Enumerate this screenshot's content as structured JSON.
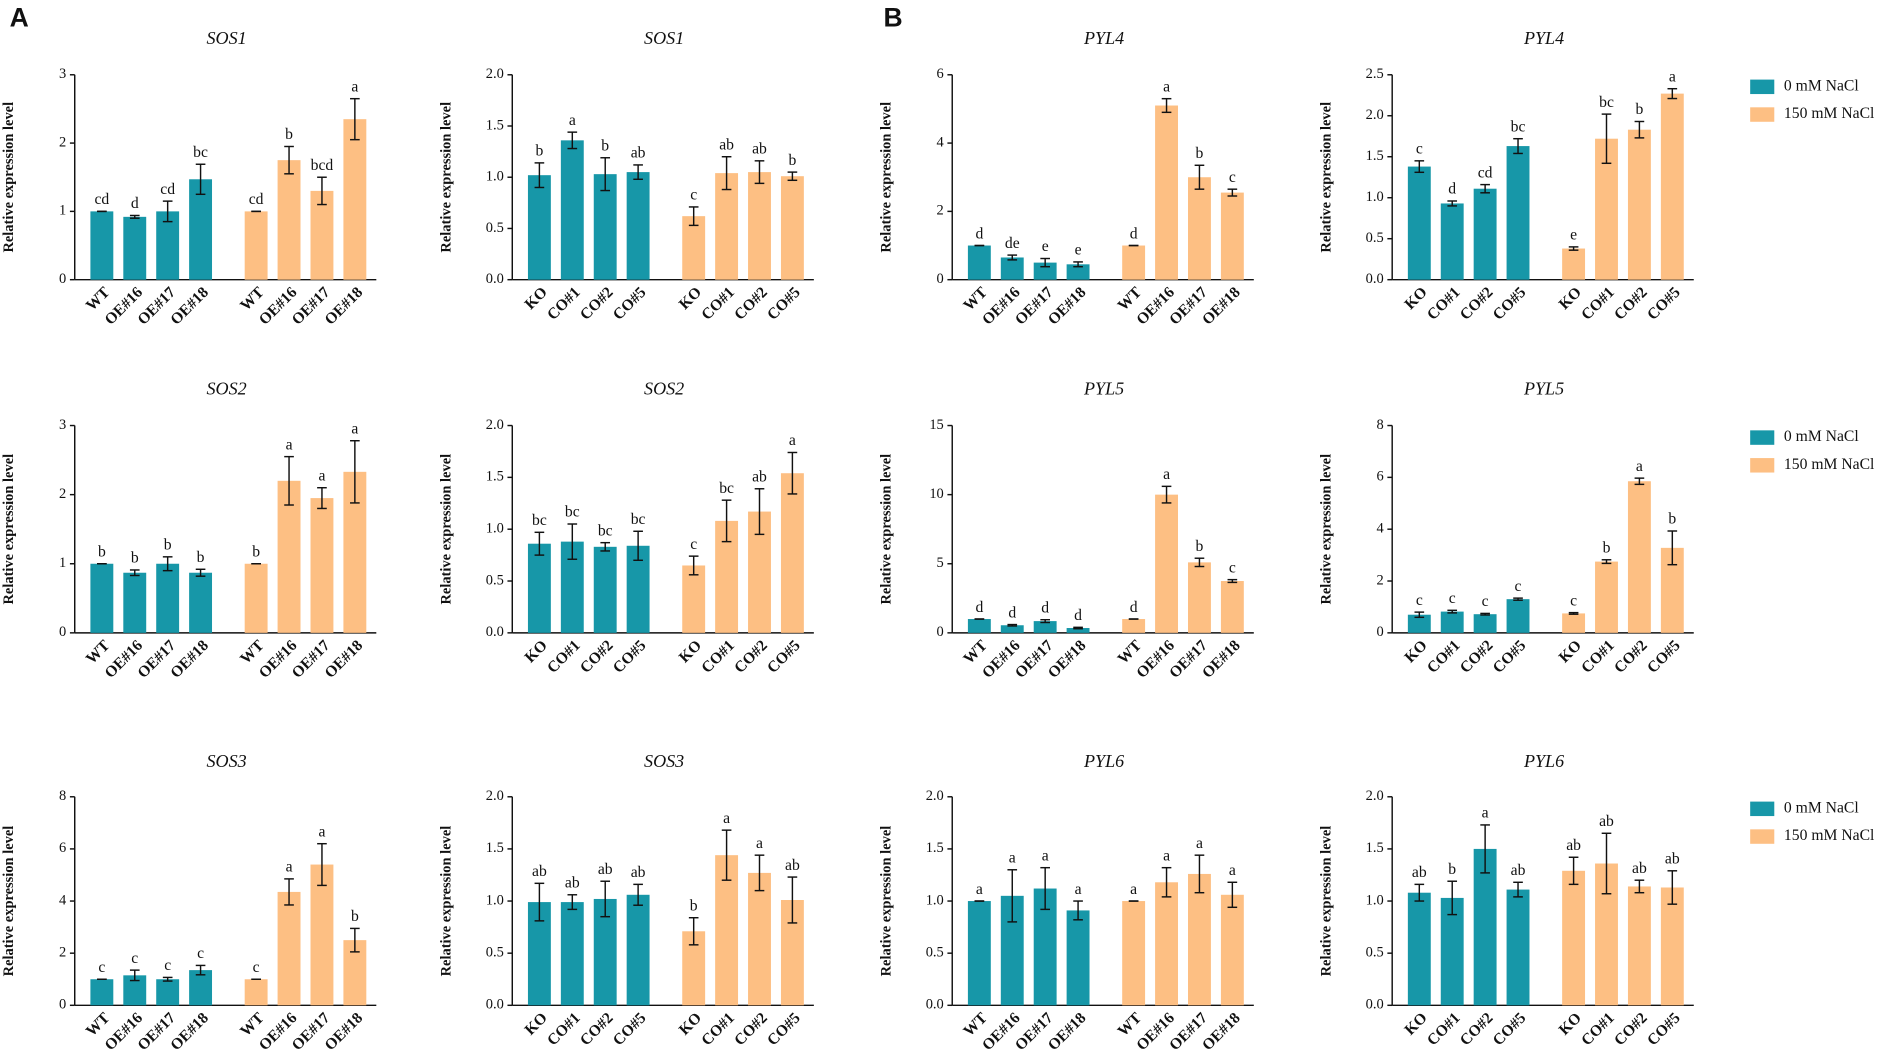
{
  "panel_labels": [
    "A",
    "B"
  ],
  "chart_data": [
    {
      "type": "bar",
      "title": "SOS1",
      "ylabel": "Relative expression level",
      "ylim": [
        0,
        3
      ],
      "yticks": [
        0,
        1,
        2,
        3
      ],
      "series": [
        {
          "color": "#1797a8",
          "categories": [
            "WT",
            "OE#16",
            "OE#17",
            "OE#18"
          ],
          "values": [
            1.0,
            0.92,
            1.0,
            1.47
          ],
          "errors": [
            0,
            0.02,
            0.15,
            0.22
          ],
          "letters": [
            "cd",
            "d",
            "cd",
            "bc"
          ]
        },
        {
          "color": "#fdbf83",
          "categories": [
            "WT",
            "OE#16",
            "OE#17",
            "OE#18"
          ],
          "values": [
            1.0,
            1.75,
            1.3,
            2.35
          ],
          "errors": [
            0,
            0.2,
            0.2,
            0.3
          ],
          "letters": [
            "cd",
            "b",
            "bcd",
            "a"
          ]
        }
      ]
    },
    {
      "type": "bar",
      "title": "SOS1",
      "ylabel": "Relative expression level",
      "ylim": [
        0,
        2
      ],
      "yticks": [
        {
          "value": 0,
          "label": "0.0"
        },
        0.5,
        {
          "value": 1,
          "label": "1.0"
        },
        1.5,
        {
          "value": 2,
          "label": "2.0"
        }
      ],
      "series": [
        {
          "color": "#1797a8",
          "categories": [
            "KO",
            "CO#1",
            "CO#2",
            "CO#5"
          ],
          "values": [
            1.02,
            1.36,
            1.03,
            1.05
          ],
          "errors": [
            0.12,
            0.08,
            0.16,
            0.07
          ],
          "letters": [
            "b",
            "a",
            "b",
            "ab"
          ]
        },
        {
          "color": "#fdbf83",
          "categories": [
            "KO",
            "CO#1",
            "CO#2",
            "CO#5"
          ],
          "values": [
            0.62,
            1.04,
            1.05,
            1.01
          ],
          "errors": [
            0.09,
            0.16,
            0.11,
            0.04
          ],
          "letters": [
            "c",
            "ab",
            "ab",
            "b"
          ]
        }
      ]
    },
    {
      "type": "bar",
      "title": "PYL4",
      "ylabel": "Relative expression level",
      "ylim": [
        0,
        6
      ],
      "yticks": [
        0,
        2,
        4,
        6
      ],
      "series": [
        {
          "color": "#1797a8",
          "categories": [
            "WT",
            "OE#16",
            "OE#17",
            "OE#18"
          ],
          "values": [
            1.0,
            0.65,
            0.5,
            0.45
          ],
          "errors": [
            0,
            0.07,
            0.12,
            0.07
          ],
          "letters": [
            "d",
            "de",
            "e",
            "e"
          ]
        },
        {
          "color": "#fdbf83",
          "categories": [
            "WT",
            "OE#16",
            "OE#17",
            "OE#18"
          ],
          "values": [
            1.0,
            5.1,
            3.0,
            2.55
          ],
          "errors": [
            0,
            0.2,
            0.35,
            0.1
          ],
          "letters": [
            "d",
            "a",
            "b",
            "c"
          ]
        }
      ]
    },
    {
      "type": "bar",
      "title": "PYL4",
      "ylabel": "Relative expression level",
      "ylim": [
        0,
        2.5
      ],
      "yticks": [
        {
          "value": 0,
          "label": "0.0"
        },
        0.5,
        {
          "value": 1,
          "label": "1.0"
        },
        1.5,
        {
          "value": 2,
          "label": "2.0"
        },
        2.5
      ],
      "legend": "right",
      "series": [
        {
          "name": "0 mM NaCl",
          "color": "#1797a8",
          "categories": [
            "KO",
            "CO#1",
            "CO#2",
            "CO#5"
          ],
          "values": [
            1.38,
            0.93,
            1.11,
            1.63
          ],
          "errors": [
            0.07,
            0.03,
            0.05,
            0.09
          ],
          "letters": [
            "c",
            "d",
            "cd",
            "bc"
          ]
        },
        {
          "name": "150 mM NaCl",
          "color": "#fdbf83",
          "categories": [
            "KO",
            "CO#1",
            "CO#2",
            "CO#5"
          ],
          "values": [
            0.38,
            1.72,
            1.83,
            2.27
          ],
          "errors": [
            0.02,
            0.3,
            0.1,
            0.06
          ],
          "letters": [
            "e",
            "bc",
            "b",
            "a"
          ]
        }
      ]
    },
    {
      "type": "bar",
      "title": "SOS2",
      "ylabel": "Relative expression level",
      "ylim": [
        0,
        3
      ],
      "yticks": [
        0,
        1,
        2,
        3
      ],
      "series": [
        {
          "color": "#1797a8",
          "categories": [
            "WT",
            "OE#16",
            "OE#17",
            "OE#18"
          ],
          "values": [
            1.0,
            0.87,
            1.0,
            0.87
          ],
          "errors": [
            0,
            0.04,
            0.1,
            0.05
          ],
          "letters": [
            "b",
            "b",
            "b",
            "b"
          ]
        },
        {
          "color": "#fdbf83",
          "categories": [
            "WT",
            "OE#16",
            "OE#17",
            "OE#18"
          ],
          "values": [
            1.0,
            2.2,
            1.95,
            2.33
          ],
          "errors": [
            0,
            0.35,
            0.15,
            0.45
          ],
          "letters": [
            "b",
            "a",
            "a",
            "a"
          ]
        }
      ]
    },
    {
      "type": "bar",
      "title": "SOS2",
      "ylabel": "Relative expression level",
      "ylim": [
        0,
        2
      ],
      "yticks": [
        {
          "value": 0,
          "label": "0.0"
        },
        0.5,
        {
          "value": 1,
          "label": "1.0"
        },
        1.5,
        {
          "value": 2,
          "label": "2.0"
        }
      ],
      "series": [
        {
          "color": "#1797a8",
          "categories": [
            "KO",
            "CO#1",
            "CO#2",
            "CO#5"
          ],
          "values": [
            0.86,
            0.88,
            0.83,
            0.84
          ],
          "errors": [
            0.11,
            0.17,
            0.04,
            0.14
          ],
          "letters": [
            "bc",
            "bc",
            "bc",
            "bc"
          ]
        },
        {
          "color": "#fdbf83",
          "categories": [
            "KO",
            "CO#1",
            "CO#2",
            "CO#5"
          ],
          "values": [
            0.65,
            1.08,
            1.17,
            1.54
          ],
          "errors": [
            0.09,
            0.2,
            0.22,
            0.2
          ],
          "letters": [
            "c",
            "bc",
            "ab",
            "a"
          ]
        }
      ]
    },
    {
      "type": "bar",
      "title": "PYL5",
      "ylabel": "Relative expression level",
      "ylim": [
        0,
        15
      ],
      "yticks": [
        0,
        5,
        10,
        15
      ],
      "series": [
        {
          "color": "#1797a8",
          "categories": [
            "WT",
            "OE#16",
            "OE#17",
            "OE#18"
          ],
          "values": [
            1.0,
            0.55,
            0.85,
            0.35
          ],
          "errors": [
            0,
            0.05,
            0.1,
            0.05
          ],
          "letters": [
            "d",
            "d",
            "d",
            "d"
          ]
        },
        {
          "color": "#fdbf83",
          "categories": [
            "WT",
            "OE#16",
            "OE#17",
            "OE#18"
          ],
          "values": [
            1.0,
            10.0,
            5.1,
            3.75
          ],
          "errors": [
            0,
            0.6,
            0.3,
            0.1
          ],
          "letters": [
            "d",
            "a",
            "b",
            "c"
          ]
        }
      ]
    },
    {
      "type": "bar",
      "title": "PYL5",
      "ylabel": "Relative expression level",
      "ylim": [
        0,
        8
      ],
      "yticks": [
        0,
        2,
        4,
        6,
        8
      ],
      "legend": "right",
      "series": [
        {
          "name": "0 mM NaCl",
          "color": "#1797a8",
          "categories": [
            "KO",
            "CO#1",
            "CO#2",
            "CO#5"
          ],
          "values": [
            0.7,
            0.82,
            0.72,
            1.3
          ],
          "errors": [
            0.1,
            0.05,
            0.03,
            0.04
          ],
          "letters": [
            "c",
            "c",
            "c",
            "c"
          ]
        },
        {
          "name": "150 mM NaCl",
          "color": "#fdbf83",
          "categories": [
            "KO",
            "CO#1",
            "CO#2",
            "CO#5"
          ],
          "values": [
            0.75,
            2.75,
            5.85,
            3.28
          ],
          "errors": [
            0.03,
            0.07,
            0.12,
            0.65
          ],
          "letters": [
            "c",
            "b",
            "a",
            "b"
          ]
        }
      ]
    },
    {
      "type": "bar",
      "title": "SOS3",
      "ylabel": "Relative expression level",
      "ylim": [
        0,
        8
      ],
      "yticks": [
        0,
        2,
        4,
        6,
        8
      ],
      "series": [
        {
          "color": "#1797a8",
          "categories": [
            "WT",
            "OE#16",
            "OE#17",
            "OE#18"
          ],
          "values": [
            1.0,
            1.15,
            1.0,
            1.35
          ],
          "errors": [
            0,
            0.2,
            0.07,
            0.18
          ],
          "letters": [
            "c",
            "c",
            "c",
            "c"
          ]
        },
        {
          "color": "#fdbf83",
          "categories": [
            "WT",
            "OE#16",
            "OE#17",
            "OE#18"
          ],
          "values": [
            1.0,
            4.35,
            5.4,
            2.5
          ],
          "errors": [
            0,
            0.5,
            0.8,
            0.45
          ],
          "letters": [
            "c",
            "a",
            "a",
            "b"
          ]
        }
      ]
    },
    {
      "type": "bar",
      "title": "SOS3",
      "ylabel": "Relative expression level",
      "ylim": [
        0,
        2
      ],
      "yticks": [
        {
          "value": 0,
          "label": "0.0"
        },
        0.5,
        {
          "value": 1,
          "label": "1.0"
        },
        1.5,
        {
          "value": 2,
          "label": "2.0"
        }
      ],
      "series": [
        {
          "color": "#1797a8",
          "categories": [
            "KO",
            "CO#1",
            "CO#2",
            "CO#5"
          ],
          "values": [
            0.99,
            0.99,
            1.02,
            1.06
          ],
          "errors": [
            0.18,
            0.07,
            0.17,
            0.1
          ],
          "letters": [
            "ab",
            "ab",
            "ab",
            "ab"
          ]
        },
        {
          "color": "#fdbf83",
          "categories": [
            "KO",
            "CO#1",
            "CO#2",
            "CO#5"
          ],
          "values": [
            0.71,
            1.44,
            1.27,
            1.01
          ],
          "errors": [
            0.13,
            0.24,
            0.17,
            0.22
          ],
          "letters": [
            "b",
            "a",
            "a",
            "ab"
          ]
        }
      ]
    },
    {
      "type": "bar",
      "title": "PYL6",
      "ylabel": "Relative expression level",
      "ylim": [
        0,
        2
      ],
      "yticks": [
        {
          "value": 0,
          "label": "0.0"
        },
        0.5,
        {
          "value": 1,
          "label": "1.0"
        },
        1.5,
        {
          "value": 2,
          "label": "2.0"
        }
      ],
      "series": [
        {
          "color": "#1797a8",
          "categories": [
            "WT",
            "OE#16",
            "OE#17",
            "OE#18"
          ],
          "values": [
            1.0,
            1.05,
            1.12,
            0.91
          ],
          "errors": [
            0,
            0.25,
            0.2,
            0.09
          ],
          "letters": [
            "a",
            "a",
            "a",
            "a"
          ]
        },
        {
          "color": "#fdbf83",
          "categories": [
            "WT",
            "OE#16",
            "OE#17",
            "OE#18"
          ],
          "values": [
            1.0,
            1.18,
            1.26,
            1.06
          ],
          "errors": [
            0,
            0.14,
            0.18,
            0.12
          ],
          "letters": [
            "a",
            "a",
            "a",
            "a"
          ]
        }
      ]
    },
    {
      "type": "bar",
      "title": "PYL6",
      "ylabel": "Relative expression level",
      "ylim": [
        0,
        2
      ],
      "yticks": [
        {
          "value": 0,
          "label": "0.0"
        },
        0.5,
        {
          "value": 1,
          "label": "1.0"
        },
        1.5,
        {
          "value": 2,
          "label": "2.0"
        }
      ],
      "legend": "right",
      "series": [
        {
          "name": "0 mM NaCl",
          "color": "#1797a8",
          "categories": [
            "KO",
            "CO#1",
            "CO#2",
            "CO#5"
          ],
          "values": [
            1.08,
            1.03,
            1.5,
            1.11
          ],
          "errors": [
            0.08,
            0.16,
            0.23,
            0.07
          ],
          "letters": [
            "ab",
            "b",
            "a",
            "ab"
          ]
        },
        {
          "name": "150 mM NaCl",
          "color": "#fdbf83",
          "categories": [
            "KO",
            "CO#1",
            "CO#2",
            "CO#5"
          ],
          "values": [
            1.29,
            1.36,
            1.14,
            1.13
          ],
          "errors": [
            0.13,
            0.29,
            0.06,
            0.16
          ],
          "letters": [
            "ab",
            "ab",
            "ab",
            "ab"
          ]
        }
      ]
    }
  ]
}
